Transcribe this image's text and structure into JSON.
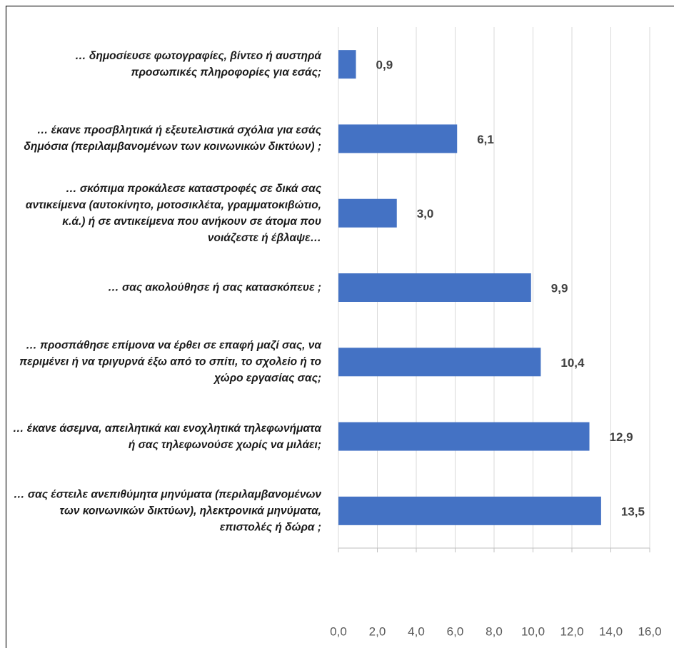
{
  "chart_data": {
    "type": "bar",
    "orientation": "horizontal",
    "categories": [
      "… δημοσίευσε φωτογραφίες, βίντεο ή αυστηρά προσωπικές πληροφορίες για εσάς;",
      "… έκανε προσβλητικά ή εξευτελιστικά σχόλια για εσάς δημόσια (περιλαμβανομένων των κοινωνικών δικτύων) ;",
      "… σκόπιμα προκάλεσε καταστροφές σε δικά σας αντικείμενα (αυτοκίνητο, μοτοσικλέτα, γραμματοκιβώτιο, κ.ά.) ή σε αντικείμενα που ανήκουν σε άτομα που νοιάζεστε ή έβλαψε…",
      "… σας ακολούθησε ή σας κατασκόπευε ;",
      "… προσπάθησε επίμονα να έρθει σε επαφή μαζί σας, να περιμένει ή να τριγυρνά έξω από το σπίτι, το σχολείο ή το χώρο εργασίας σας;",
      "… έκανε άσεμνα, απειλητικά και ενοχλητικά τηλεφωνήματα ή σας τηλεφωνούσε χωρίς να μιλάει;",
      "… σας έστειλε ανεπιθύμητα μηνύματα (περιλαμβανομένων των κοινωνικών δικτύων), ηλεκτρονικά μηνύματα, επιστολές ή δώρα ;"
    ],
    "values": [
      0.9,
      6.1,
      3.0,
      9.9,
      10.4,
      12.9,
      13.5
    ],
    "value_labels": [
      "0,9",
      "6,1",
      "3,0",
      "9,9",
      "10,4",
      "12,9",
      "13,5"
    ],
    "color": "#4472c4",
    "xlim": [
      0,
      16
    ],
    "xticks": [
      {
        "value": 0,
        "label": "0,0"
      },
      {
        "value": 2,
        "label": "2,0"
      },
      {
        "value": 4,
        "label": "4,0"
      },
      {
        "value": 6,
        "label": "6,0"
      },
      {
        "value": 8,
        "label": "8,0"
      },
      {
        "value": 10,
        "label": "10,0"
      },
      {
        "value": 12,
        "label": "12,0"
      },
      {
        "value": 14,
        "label": "14,0"
      },
      {
        "value": 16,
        "label": "16,0"
      }
    ],
    "grid": true
  }
}
